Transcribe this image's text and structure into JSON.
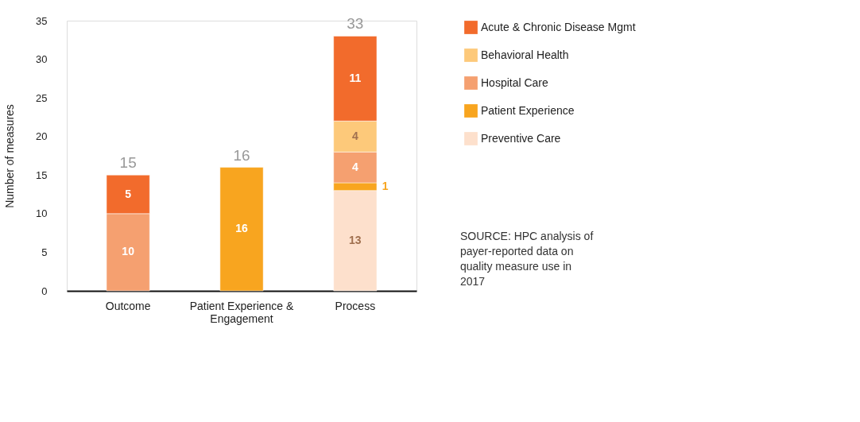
{
  "chart_data": {
    "type": "bar",
    "stacked": true,
    "categories": [
      "Outcome",
      "Patient Experience & Engagement",
      "Process"
    ],
    "series": [
      {
        "name": "Preventive Care",
        "color": "#fde0cc",
        "values": [
          null,
          null,
          13
        ]
      },
      {
        "name": "Patient Experience",
        "color": "#f8a51f",
        "values": [
          null,
          16,
          1
        ]
      },
      {
        "name": "Hospital Care",
        "color": "#f5a070",
        "values": [
          10,
          null,
          4
        ]
      },
      {
        "name": "Behavioral Health",
        "color": "#fdc97a",
        "values": [
          null,
          null,
          4
        ]
      },
      {
        "name": "Acute & Chronic Disease Mgmt",
        "color": "#f26b2c",
        "values": [
          5,
          null,
          11
        ]
      }
    ],
    "ylabel": "Number of measures",
    "ylim": [
      0,
      35
    ],
    "yticks": [
      0,
      5,
      10,
      15,
      20,
      25,
      30,
      35
    ],
    "data_labels": true,
    "totals": [
      "15",
      "16",
      "33"
    ],
    "grid": false,
    "legend": "right",
    "annotations": [
      "SOURCE: HPC analysis of payer-reported data on quality measure use in 2017"
    ]
  }
}
